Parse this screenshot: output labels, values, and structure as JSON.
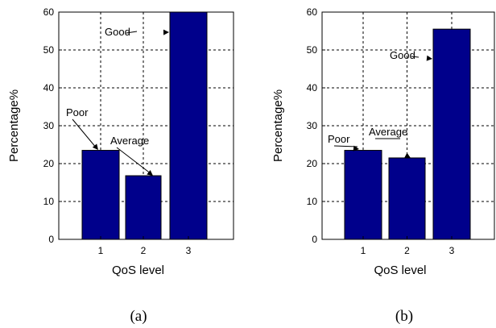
{
  "chart_data": [
    {
      "type": "bar",
      "panel_label": "(a)",
      "categories": [
        "1",
        "2",
        "3"
      ],
      "values": [
        23.5,
        16.8,
        60
      ],
      "xlabel": "QoS level",
      "ylabel": "Percentage%",
      "ylim": [
        0,
        60
      ],
      "yticks": [
        "0",
        "10",
        "20",
        "30",
        "40",
        "50",
        "60"
      ],
      "grid": true,
      "bar_color": "#00008b",
      "annotations": [
        "Poor",
        "Average",
        "Good"
      ]
    },
    {
      "type": "bar",
      "panel_label": "(b)",
      "categories": [
        "1",
        "2",
        "3"
      ],
      "values": [
        23.5,
        21.5,
        55.5
      ],
      "xlabel": "QoS level",
      "ylabel": "Percentage%",
      "ylim": [
        0,
        60
      ],
      "yticks": [
        "0",
        "10",
        "20",
        "30",
        "40",
        "50",
        "60"
      ],
      "grid": true,
      "bar_color": "#00008b",
      "annotations": [
        "Poor",
        "Average",
        "Good"
      ]
    }
  ]
}
